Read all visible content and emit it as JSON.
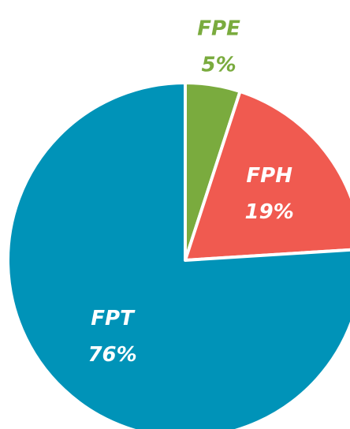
{
  "chart_data": {
    "type": "pie",
    "categories": [
      "FPE",
      "FPH",
      "FPT"
    ],
    "values": [
      5,
      19,
      76
    ],
    "value_labels": [
      "5%",
      "19%",
      "76%"
    ],
    "colors": [
      "#7aab3e",
      "#f05a50",
      "#0093b8"
    ]
  }
}
